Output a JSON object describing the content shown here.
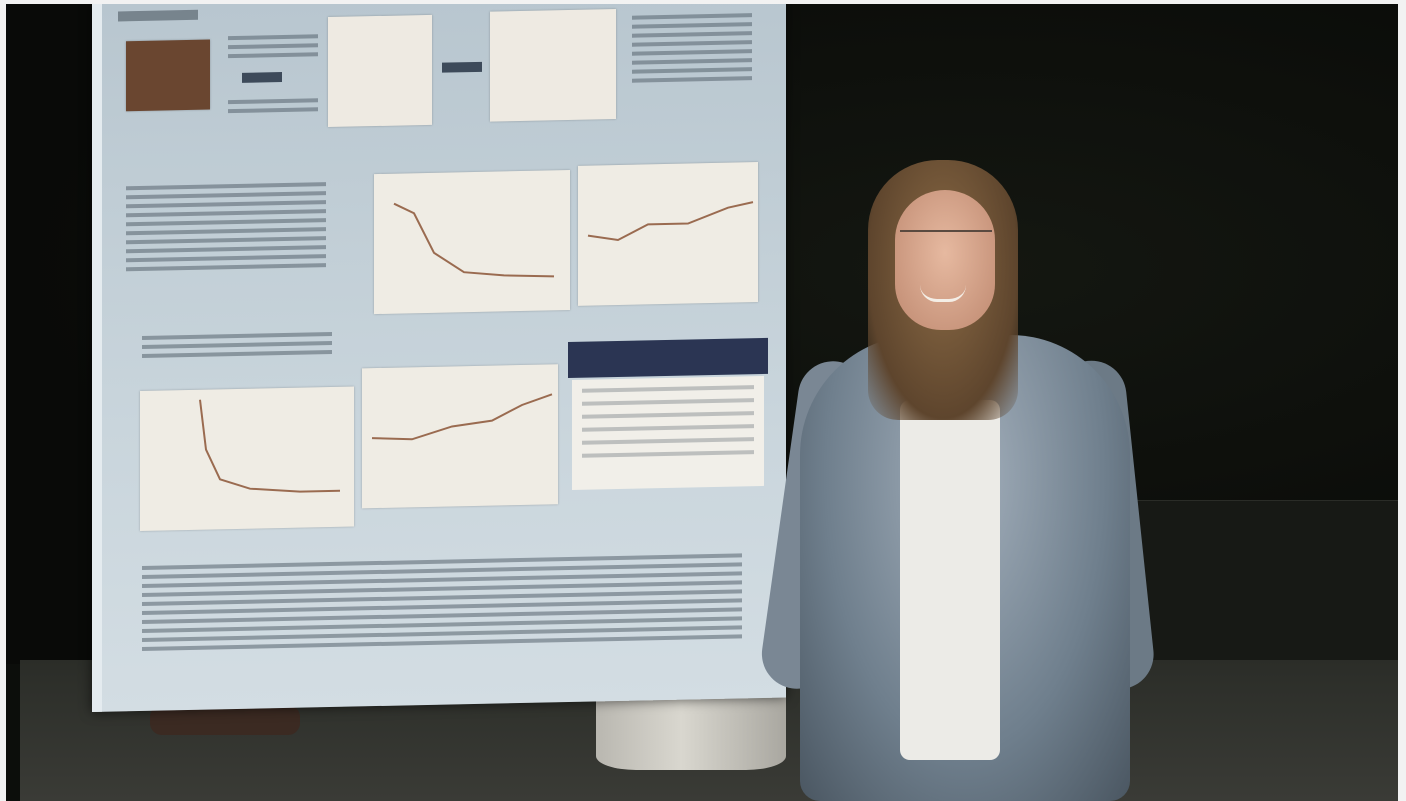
{
  "image": {
    "description_type": "photo",
    "colors": {
      "background": "#0c0e0b",
      "poster": "#c9d5dc",
      "poster_band": "#2b3553",
      "floor": "#2b2d28",
      "jacket": "#6f7f8d",
      "shirt": "#ecebe7",
      "hair": "#6a4f35"
    }
  }
}
